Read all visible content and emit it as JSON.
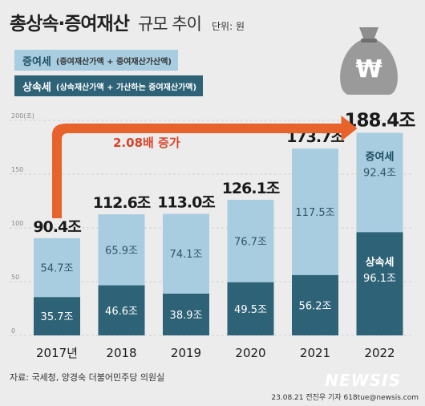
{
  "title": {
    "main": "총상속·증여재산",
    "sub": "규모 추이",
    "unit": "단위: 원"
  },
  "legend": [
    {
      "label": "증여세",
      "desc": "(증여재산가액 + 증여재산가산액)",
      "color": "#a8cde0",
      "text_color": "#1f4e63"
    },
    {
      "label": "상속세",
      "desc": "(상속재산가액 + 가산하는 증여재산가액)",
      "color": "#2e6277",
      "text_color": "#ffffff"
    }
  ],
  "annotation": "2.08배 증가",
  "source": "자료: 국세청, 양경숙 더불어민주당 의원실",
  "credit": "23.08.21 전진우 기자 618tue@newsis.com",
  "brand": "NEWSIS",
  "colors": {
    "gift": "#a8cde0",
    "inherit": "#2e6277",
    "arrow": "#e8622c",
    "annotation": "#d8442a",
    "background": "#ececec"
  },
  "chart_data": {
    "type": "bar",
    "stacked": true,
    "categories": [
      "2017년",
      "2018",
      "2019",
      "2020",
      "2021",
      "2022"
    ],
    "series": [
      {
        "name": "상속세",
        "values": [
          35.7,
          46.6,
          38.9,
          49.5,
          56.2,
          96.1
        ],
        "labels": [
          "35.7조",
          "46.6조",
          "38.9조",
          "49.5조",
          "56.2조",
          "96.1조"
        ]
      },
      {
        "name": "증여세",
        "values": [
          54.7,
          65.9,
          74.1,
          76.7,
          117.5,
          92.4
        ],
        "labels": [
          "54.7조",
          "65.9조",
          "74.1조",
          "76.7조",
          "117.5조",
          "92.4조"
        ]
      }
    ],
    "totals": [
      90.4,
      112.6,
      113.0,
      126.1,
      173.7,
      188.4
    ],
    "total_labels": [
      "90.4조",
      "112.6조",
      "113.0조",
      "126.1조",
      "173.7조",
      "188.4조"
    ],
    "ytick_labels": [
      "0",
      "50",
      "100",
      "150",
      "200(조)"
    ],
    "yticks": [
      0,
      50,
      100,
      150,
      200
    ],
    "ylim": [
      0,
      200
    ],
    "grid": true
  }
}
